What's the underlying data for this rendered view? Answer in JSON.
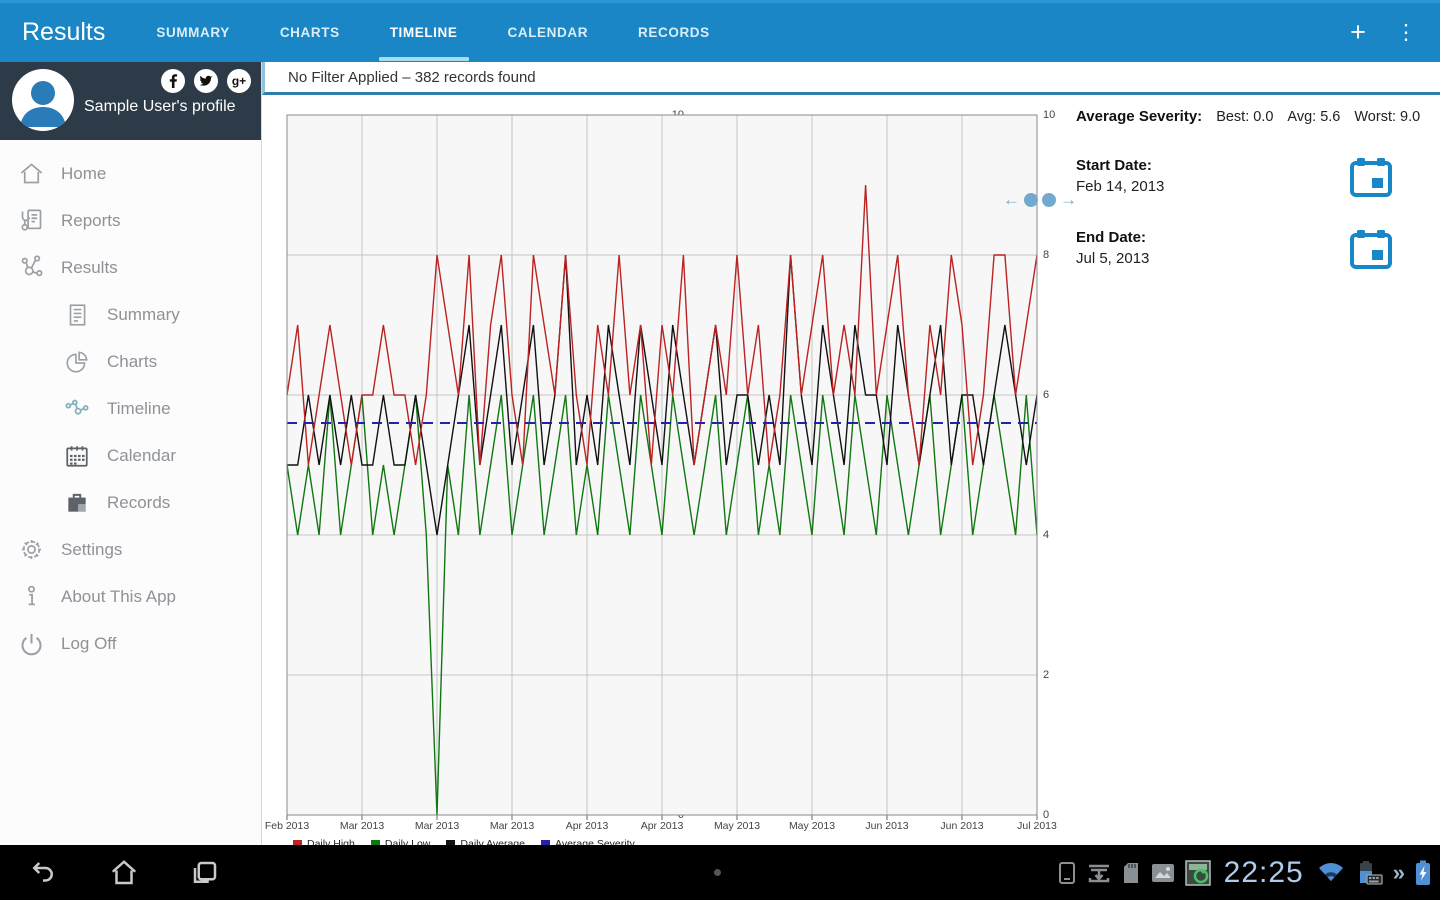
{
  "header": {
    "app_title": "Results",
    "tabs": [
      {
        "label": "SUMMARY"
      },
      {
        "label": "CHARTS"
      },
      {
        "label": "TIMELINE",
        "active": true
      },
      {
        "label": "CALENDAR"
      },
      {
        "label": "RECORDS"
      }
    ],
    "actions": {
      "add": "+",
      "overflow": "⋮"
    }
  },
  "sidebar": {
    "profile_name": "Sample User's profile",
    "social": [
      {
        "name": "facebook",
        "glyph": "f"
      },
      {
        "name": "twitter",
        "glyph": "t"
      },
      {
        "name": "googleplus",
        "glyph": "g+"
      }
    ],
    "items": [
      {
        "label": "Home",
        "level": 0
      },
      {
        "label": "Reports",
        "level": 0
      },
      {
        "label": "Results",
        "level": 0
      },
      {
        "label": "Summary",
        "level": 1
      },
      {
        "label": "Charts",
        "level": 1
      },
      {
        "label": "Timeline",
        "level": 1,
        "active": true
      },
      {
        "label": "Calendar",
        "level": 1
      },
      {
        "label": "Records",
        "level": 1
      },
      {
        "label": "Settings",
        "level": 0
      },
      {
        "label": "About This App",
        "level": 0
      },
      {
        "label": "Log Off",
        "level": 0
      }
    ]
  },
  "filter_bar": {
    "text": "No Filter Applied – 382 records found"
  },
  "panel": {
    "avg_severity_label": "Average Severity:",
    "best": "Best: 0.0",
    "avg": "Avg: 5.6",
    "worst": "Worst: 9.0",
    "start_date_label": "Start Date:",
    "start_date": "Feb 14, 2013",
    "end_date_label": "End Date:",
    "end_date": "Jul 5, 2013"
  },
  "icons": {
    "pan_left": "←",
    "pan_right": "→",
    "chevrons": "»"
  },
  "status_bar": {
    "clock": "22:25",
    "icon_names": [
      "tablet",
      "download",
      "sdcard",
      "gallery",
      "screenshot",
      "wifi",
      "battery-keyboard",
      "chevrons",
      "battery-charging"
    ]
  },
  "colors": {
    "topbar": "#1b86c5",
    "tab_underline": "#a7dcf2",
    "sidebar_header": "#2d3a47",
    "avatar_person": "#2a7cb8",
    "filter_border": "#2e7fb0",
    "calendar_icon": "#1787c8",
    "clock": "#aecbe8"
  },
  "chart_data": {
    "type": "line",
    "title": "",
    "xlabel": "",
    "ylabel": "",
    "ylim": [
      0,
      10
    ],
    "grid": true,
    "legend_position": "bottom",
    "x_start": "Feb 14, 2013",
    "x_end": "Jul 5, 2013",
    "x_days_step": 2,
    "x_tick_labels": [
      "Feb 2013",
      "Mar 2013",
      "Mar 2013",
      "Mar 2013",
      "Apr 2013",
      "Apr 2013",
      "May 2013",
      "May 2013",
      "Jun 2013",
      "Jun 2013",
      "Jul 2013"
    ],
    "y_ticks": [
      0,
      2,
      4,
      6,
      8,
      10
    ],
    "series": [
      {
        "name": "Daily High",
        "color": "#bb2222",
        "z": 3,
        "values": [
          6,
          7,
          5,
          6,
          7,
          6,
          5,
          6,
          6,
          7,
          6,
          6,
          5,
          6,
          8,
          7,
          6,
          8,
          5,
          7,
          8,
          6,
          5,
          8,
          7,
          6,
          8,
          6,
          5,
          7,
          6,
          8,
          6,
          7,
          5,
          7,
          6,
          8,
          5,
          6,
          7,
          6,
          8,
          6,
          7,
          5,
          6,
          8,
          6,
          7,
          8,
          6,
          7,
          6,
          9,
          6,
          7,
          8,
          6,
          5,
          7,
          6,
          8,
          7,
          5,
          6,
          8,
          8,
          6,
          7,
          8
        ]
      },
      {
        "name": "Daily Low",
        "color": "#117711",
        "z": 1,
        "values": [
          5,
          4,
          5,
          4,
          6,
          4,
          5,
          6,
          4,
          5,
          4,
          5,
          6,
          4,
          0,
          5,
          4,
          6,
          4,
          5,
          6,
          4,
          5,
          6,
          4,
          5,
          6,
          4,
          5,
          4,
          6,
          5,
          4,
          6,
          5,
          4,
          6,
          5,
          4,
          5,
          6,
          4,
          5,
          6,
          4,
          5,
          4,
          6,
          5,
          4,
          6,
          5,
          4,
          6,
          5,
          4,
          6,
          5,
          4,
          5,
          6,
          4,
          5,
          6,
          4,
          5,
          6,
          5,
          4,
          6,
          4
        ]
      },
      {
        "name": "Daily Average",
        "color": "#111111",
        "z": 2,
        "values": [
          5,
          5,
          6,
          5,
          6,
          5,
          6,
          5,
          5,
          6,
          5,
          5,
          6,
          5,
          4,
          5,
          6,
          7,
          5,
          6,
          7,
          5,
          6,
          7,
          5,
          6,
          8,
          5,
          6,
          5,
          7,
          6,
          5,
          7,
          6,
          5,
          7,
          6,
          5,
          6,
          7,
          5,
          6,
          6,
          5,
          6,
          5,
          8,
          6,
          5,
          7,
          6,
          5,
          7,
          6,
          6,
          5,
          7,
          6,
          5,
          6,
          7,
          5,
          6,
          6,
          5,
          6,
          7,
          6,
          5,
          6
        ]
      },
      {
        "name": "Average Severity",
        "color": "#2222aa",
        "z": 4,
        "style": "dashed",
        "constant": 5.6
      }
    ],
    "stats": {
      "best": 0.0,
      "avg": 5.6,
      "worst": 9.0
    }
  }
}
